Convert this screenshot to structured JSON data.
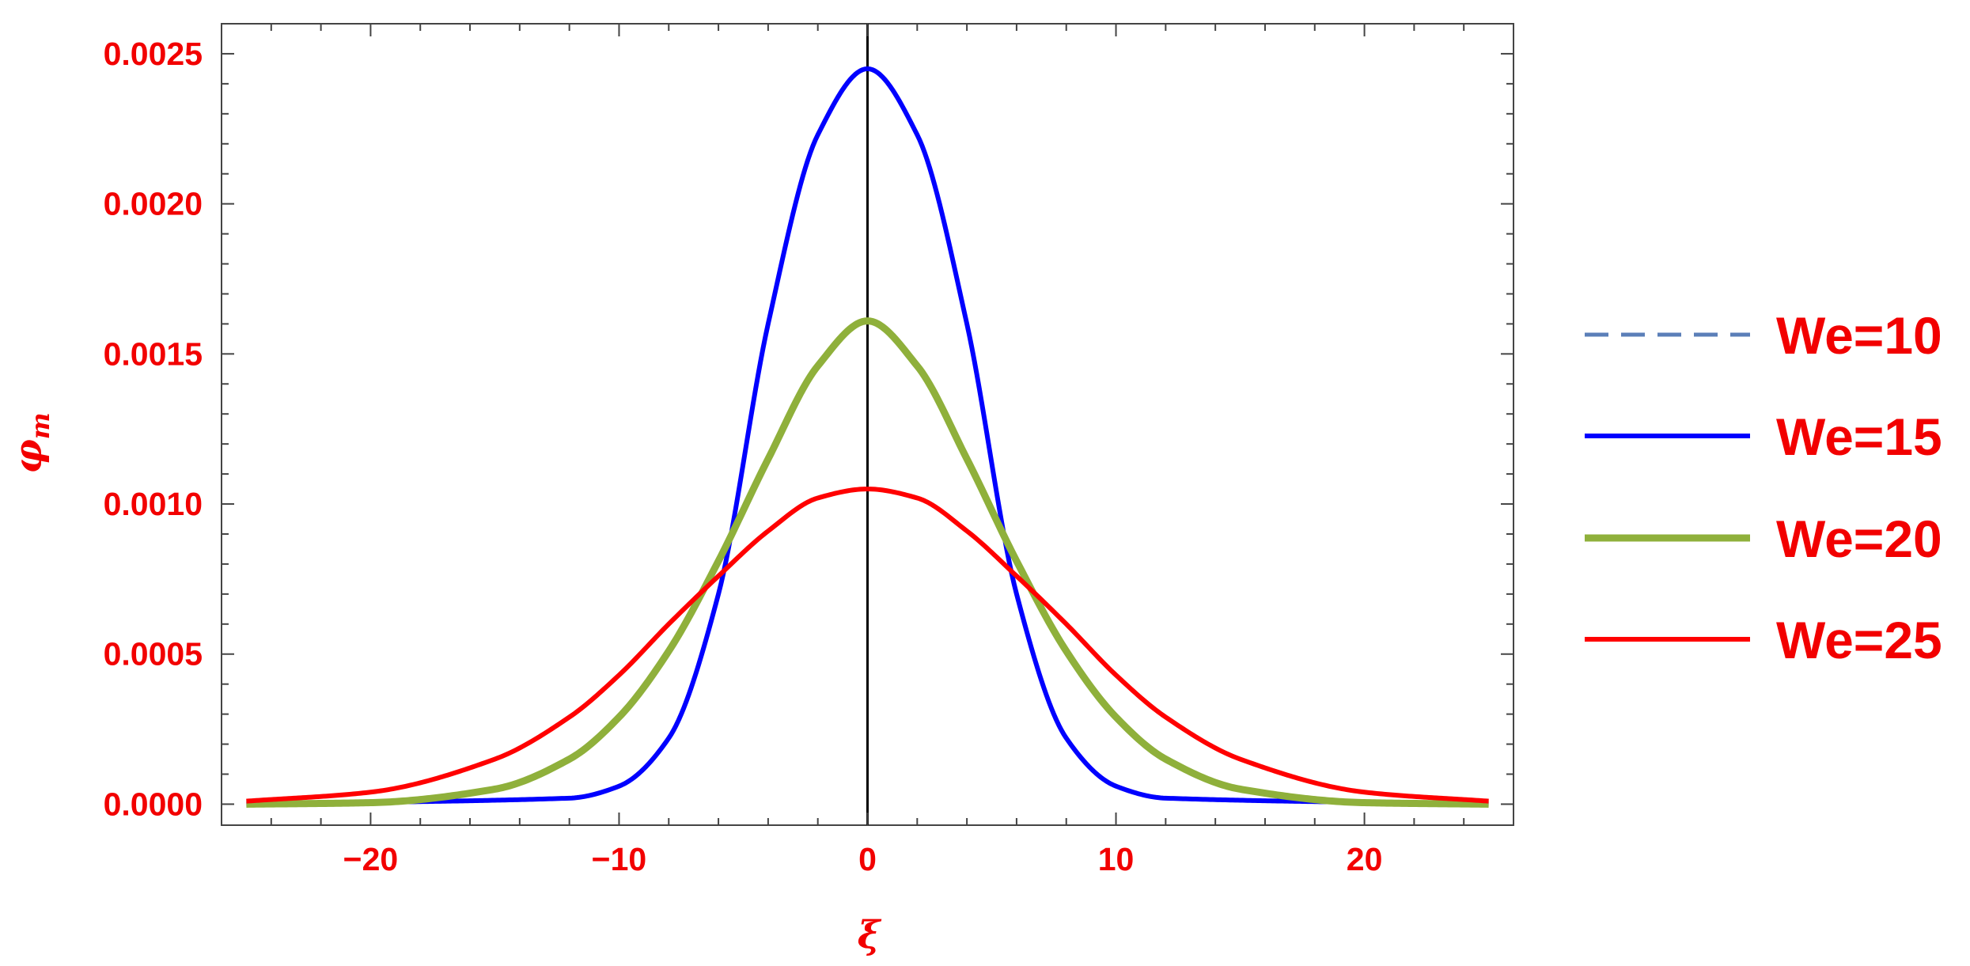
{
  "chart_data": {
    "type": "line",
    "title": "",
    "xlabel": "ξ",
    "ylabel": "φm",
    "ylabel_main": "φ",
    "ylabel_sub": "m",
    "xlim": [
      -26,
      26
    ],
    "ylim": [
      -7e-05,
      0.0026
    ],
    "x_ticks": [
      -20,
      -10,
      0,
      10,
      20
    ],
    "x_tick_labels": [
      "−20",
      "−10",
      "0",
      "10",
      "20"
    ],
    "y_ticks": [
      0,
      0.0005,
      0.001,
      0.0015,
      0.002,
      0.0025
    ],
    "y_tick_labels": [
      "0.0000",
      "0.0005",
      "0.0010",
      "0.0015",
      "0.0020",
      "0.0025"
    ],
    "x_range_plotted": [
      -25,
      25
    ],
    "grid": false,
    "legend_position": "right",
    "series": [
      {
        "name": "We=10",
        "color": "#5b7fb8",
        "dash": true,
        "x": [],
        "y": []
      },
      {
        "name": "We=15",
        "color": "#0000ff",
        "dash": false,
        "x": [
          -25,
          -12,
          -10,
          -8,
          -6,
          -4,
          -2,
          0,
          2,
          4,
          6,
          8,
          10,
          12,
          25
        ],
        "y": [
          0,
          2e-05,
          6e-05,
          0.00022,
          0.0007,
          0.0016,
          0.00223,
          0.00245,
          0.00223,
          0.0016,
          0.0007,
          0.00022,
          6e-05,
          2e-05,
          0
        ]
      },
      {
        "name": "We=20",
        "color": "#8fb03b",
        "dash": false,
        "x": [
          -25,
          -20,
          -15,
          -12,
          -10,
          -8,
          -6,
          -4,
          -2,
          0,
          2,
          4,
          6,
          8,
          10,
          12,
          15,
          20,
          25
        ],
        "y": [
          0,
          5e-06,
          5e-05,
          0.00015,
          0.00029,
          0.00051,
          0.00081,
          0.00115,
          0.00146,
          0.00161,
          0.00146,
          0.00115,
          0.00081,
          0.00051,
          0.00029,
          0.00015,
          5e-05,
          5e-06,
          0
        ]
      },
      {
        "name": "We=25",
        "color": "#ff0000",
        "dash": false,
        "x": [
          -25,
          -20,
          -15,
          -12,
          -10,
          -8,
          -6,
          -4,
          -2,
          0,
          2,
          4,
          6,
          8,
          10,
          12,
          15,
          20,
          25
        ],
        "y": [
          1e-05,
          4e-05,
          0.00015,
          0.00029,
          0.00043,
          0.0006,
          0.00076,
          0.00091,
          0.00102,
          0.00105,
          0.00102,
          0.00091,
          0.00076,
          0.0006,
          0.00043,
          0.00029,
          0.00015,
          4e-05,
          1e-05
        ]
      }
    ]
  }
}
